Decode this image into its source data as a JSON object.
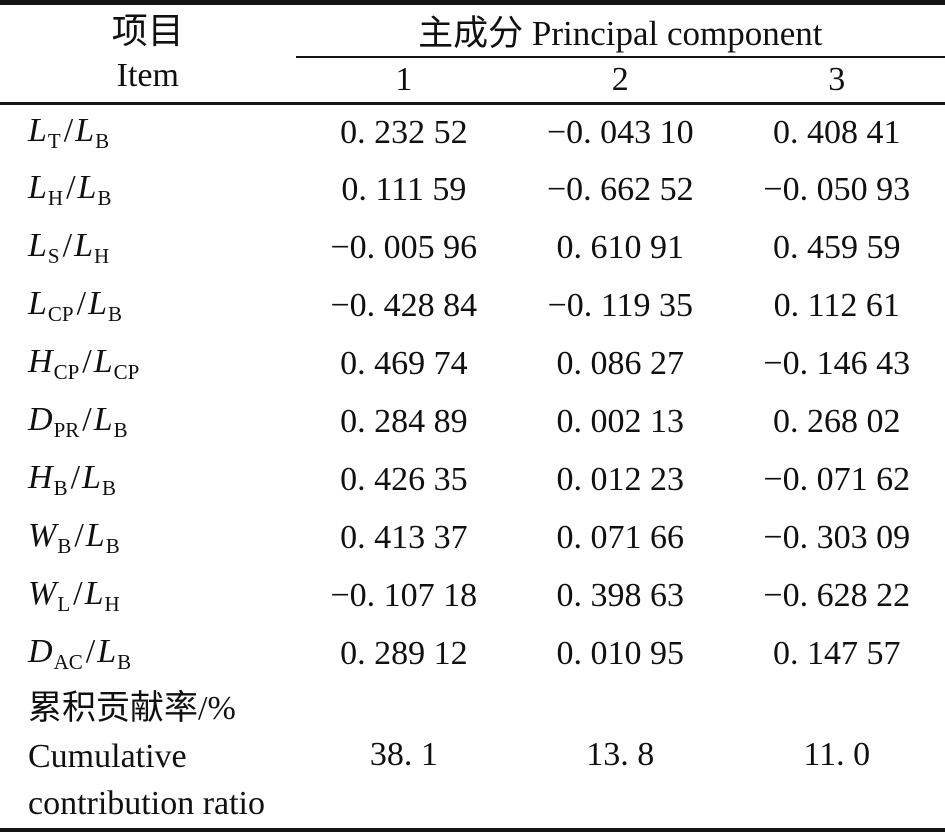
{
  "table": {
    "header": {
      "item_zh": "项目",
      "item_en": "Item",
      "pc_label": "主成分 Principal component",
      "col1": "1",
      "col2": "2",
      "col3": "3"
    },
    "rows": [
      {
        "b1": "L",
        "s1": "T",
        "sep": "/",
        "b2": "L",
        "s2": "B",
        "v1": "0. 232 52",
        "v2": "−0. 043 10",
        "v3": "0. 408 41"
      },
      {
        "b1": "L",
        "s1": "H",
        "sep": "/",
        "b2": "L",
        "s2": "B",
        "v1": "0. 111 59",
        "v2": "−0. 662 52",
        "v3": "−0. 050 93"
      },
      {
        "b1": "L",
        "s1": "S",
        "sep": "/",
        "b2": "L",
        "s2": "H",
        "v1": "−0. 005 96",
        "v2": "0. 610 91",
        "v3": "0. 459 59"
      },
      {
        "b1": "L",
        "s1": "CP",
        "sep": "/",
        "b2": "L",
        "s2": "B",
        "v1": "−0. 428 84",
        "v2": "−0. 119 35",
        "v3": "0. 112 61"
      },
      {
        "b1": "H",
        "s1": "CP",
        "sep": "/",
        "b2": "L",
        "s2": "CP",
        "v1": "0. 469 74",
        "v2": "0. 086 27",
        "v3": "−0. 146 43"
      },
      {
        "b1": "D",
        "s1": "PR",
        "sep": "/",
        "b2": "L",
        "s2": "B",
        "v1": "0. 284 89",
        "v2": "0. 002 13",
        "v3": "0. 268 02"
      },
      {
        "b1": "H",
        "s1": "B",
        "sep": "/",
        "b2": "L",
        "s2": "B",
        "v1": "0. 426 35",
        "v2": "0. 012 23",
        "v3": "−0. 071 62"
      },
      {
        "b1": "W",
        "s1": "B",
        "sep": "/",
        "b2": "L",
        "s2": "B",
        "v1": "0. 413 37",
        "v2": "0. 071 66",
        "v3": "−0. 303 09"
      },
      {
        "b1": "W",
        "s1": "L",
        "sep": "/",
        "b2": "L",
        "s2": "H",
        "v1": "−0. 107 18",
        "v2": "0. 398 63",
        "v3": "−0. 628 22"
      },
      {
        "b1": "D",
        "s1": "AC",
        "sep": "/",
        "b2": "L",
        "s2": "B",
        "v1": "0. 289 12",
        "v2": "0. 010 95",
        "v3": "0. 147 57"
      }
    ],
    "footer": {
      "label_zh": "累积贡献率/%",
      "label_en_line1": "Cumulative",
      "label_en_line2": "contribution ratio",
      "v1": "38. 1",
      "v2": "13. 8",
      "v3": "11. 0"
    }
  },
  "colors": {
    "rule": "#141414",
    "text": "#101010",
    "background": "#ffffff"
  }
}
